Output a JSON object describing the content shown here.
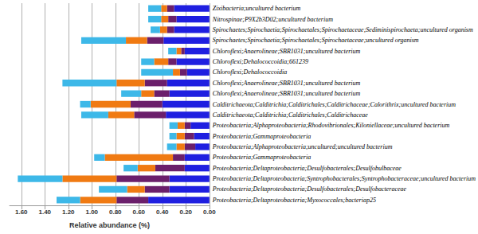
{
  "chart_data": {
    "type": "bar",
    "orientation": "horizontal",
    "stacked": true,
    "grid": true,
    "x_label": "Relative abundance (%)",
    "xlim": [
      0,
      1.7
    ],
    "xticks": [
      {
        "value": 0,
        "label": "0.00"
      },
      {
        "value": 0.2,
        "label": "0.20"
      },
      {
        "value": 0.4,
        "label": "0.40"
      },
      {
        "value": 0.6,
        "label": "0.60"
      },
      {
        "value": 0.8,
        "label": "0.80"
      },
      {
        "value": 1.0,
        "label": "1.00"
      },
      {
        "value": 1.2,
        "label": "1.20"
      },
      {
        "value": 1.4,
        "label": "1.40"
      },
      {
        "value": 1.6,
        "label": "1.60"
      }
    ],
    "categories": [
      "Zixibacteria;uncultured bacterium",
      "Nitrospinae;P9X2b3D02;uncultured bacterium",
      "Spirochaetes;Spirochaetia;Spirochaetales;Spirochaetaceae;Sediminispirochaeta;uncultured organism",
      "Spirochaetes;Spirochaetia;Spirochaetales;Spirochaetaceae;uncultured organism",
      "Chloroflexi;Anaerolineae;SBR1031;uncultured bacterium",
      "Chloroflexi;Dehalococcoidia;661239",
      "Chloroflexi;Dehalococcoidia",
      "Chloroflexi;Anaerolineae;SBR1031;uncultured bacterium",
      "Chloroflexi;Anaerolineae;SBR1031;uncultured bacterium",
      "Calditrichaeota;Calditrichia;Calditrichales;Calditrichaceae;Calorithrix;uncultured bacterium",
      "Calditrichaeota;Calditrichia;Calditrichales;Calditrichaceae",
      "Proteobacteria;Alphaproteobacteria;Rhodovibrionales;Kiloniellaceae;uncultured bacterium",
      "Proteobacteria;Gammaproteobacteria",
      "Proteobacteria;Alphaproteobacteria;uncultured;uncultured bacterium",
      "Proteobacteria;Gammaproteobacteria",
      "Proteobacteria;Deltaproteobacteria;Desulfobacterales;Desulfobulbaceae",
      "Proteobacteria;Deltaproteobacteria;Syntrophobacterales;Syntrophobacteraceae;uncultured bacterium",
      "Proteobacteria;Deltaproteobacteria;Desulfobacterales;Desulfobacteraceae",
      "Proteobacteria;Deltaproteobacteria;Myxococcales;bacteriap25"
    ],
    "series": [
      {
        "color": "#1f1fe0",
        "values": [
          0.3,
          0.28,
          0.3,
          0.39,
          0.21,
          0.28,
          0.19,
          0.36,
          0.34,
          0.4,
          0.37,
          0.16,
          0.13,
          0.12,
          0.21,
          0.21,
          0.34,
          0.34,
          0.52
        ]
      },
      {
        "color": "#6b1f6b",
        "values": [
          0.06,
          0.07,
          0.06,
          0.14,
          0.03,
          0.07,
          0.06,
          0.19,
          0.13,
          0.27,
          0.27,
          0.05,
          0.08,
          0.09,
          0.1,
          0.25,
          0.45,
          0.21,
          0.27
        ]
      },
      {
        "color": "#f07a12",
        "values": [
          0.05,
          0.06,
          0.06,
          0.18,
          0.04,
          0.12,
          0.06,
          0.24,
          0.11,
          0.34,
          0.22,
          0.06,
          0.07,
          0.07,
          0.58,
          0.15,
          0.46,
          0.15,
          0.31
        ]
      },
      {
        "color": "#3db8e8",
        "values": [
          0.11,
          0.11,
          0.08,
          0.38,
          0.07,
          0.11,
          0.27,
          0.46,
          0.17,
          0.09,
          0.23,
          0.07,
          0.06,
          0.08,
          0.09,
          0.12,
          0.38,
          0.24,
          0.2
        ]
      }
    ]
  }
}
